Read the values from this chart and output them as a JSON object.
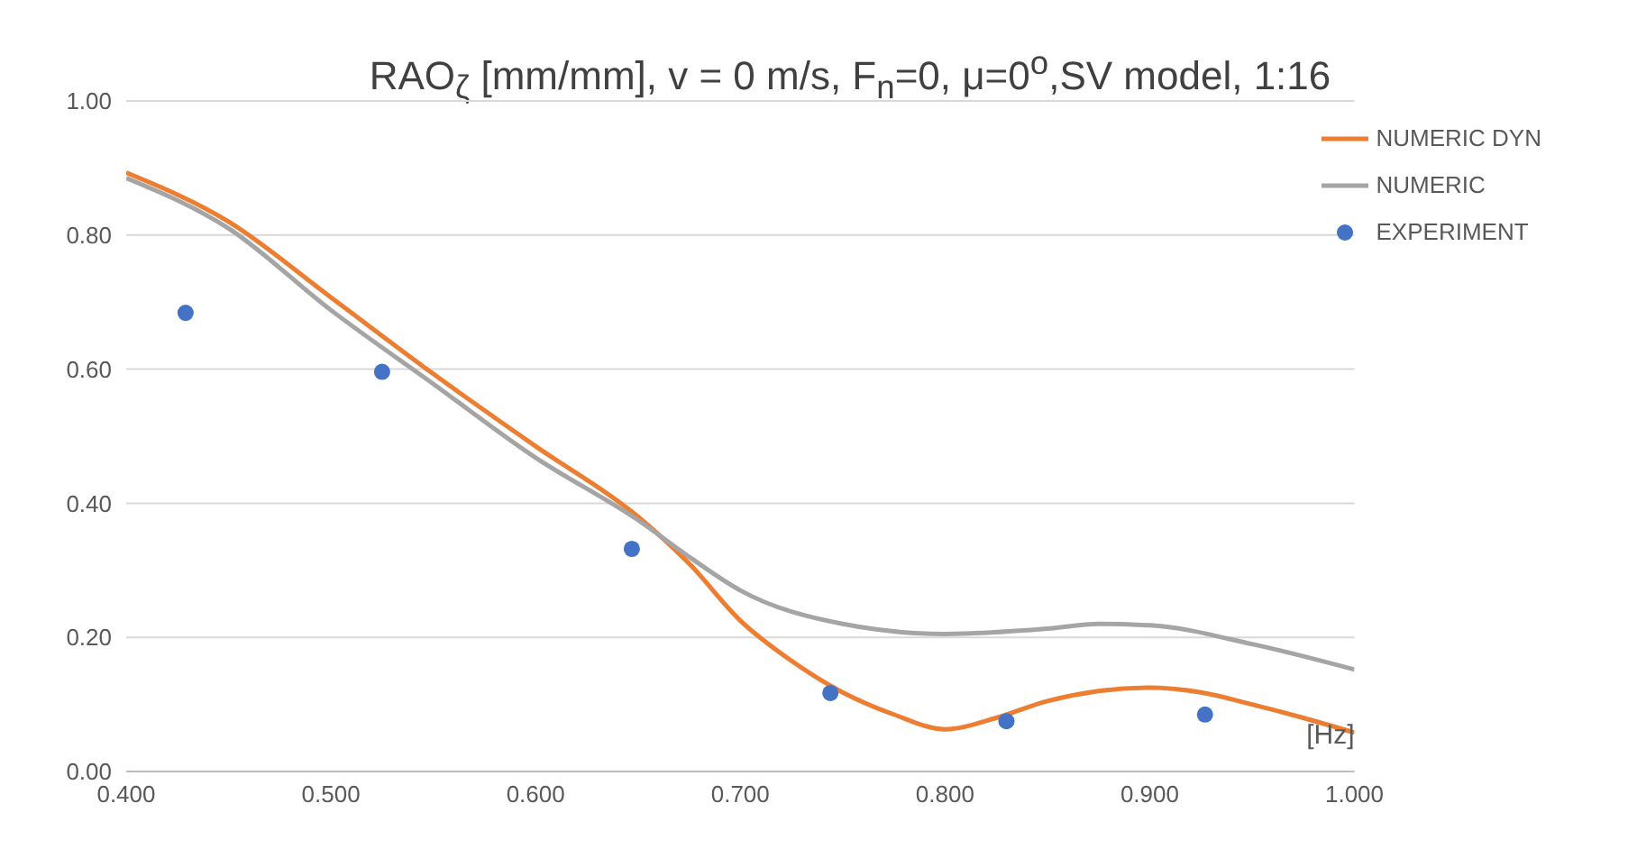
{
  "chart_data": {
    "type": "line",
    "title": "RAO$_{ζ}$ [mm/mm], v = 0 m/s, F$_{n}$=0,  μ=0$^{o}$,SV model, 1:16",
    "xlabel": "[Hz]",
    "series": [
      {
        "name": "NUMERIC DYN",
        "color": "#ed7d31",
        "marker": "none",
        "x": [
          0.4,
          0.45,
          0.5,
          0.55,
          0.6,
          0.65,
          0.675,
          0.7,
          0.725,
          0.75,
          0.775,
          0.8,
          0.825,
          0.85,
          0.875,
          0.9,
          0.925,
          0.95,
          0.975,
          1.0
        ],
        "values": [
          0.893,
          0.82,
          0.707,
          0.593,
          0.485,
          0.38,
          0.31,
          0.225,
          0.165,
          0.118,
          0.085,
          0.063,
          0.08,
          0.105,
          0.12,
          0.125,
          0.118,
          0.1,
          0.08,
          0.058
        ]
      },
      {
        "name": "NUMERIC",
        "color": "#a5a5a5",
        "marker": "none",
        "x": [
          0.4,
          0.45,
          0.5,
          0.55,
          0.6,
          0.65,
          0.675,
          0.7,
          0.75,
          0.8,
          0.85,
          0.875,
          0.9,
          0.95,
          1.0
        ],
        "values": [
          0.885,
          0.81,
          0.688,
          0.578,
          0.468,
          0.375,
          0.32,
          0.27,
          0.22,
          0.205,
          0.213,
          0.22,
          0.218,
          0.19,
          0.152
        ]
      },
      {
        "name": "EXPERIMENT",
        "type": "scatter",
        "color": "#4472c4",
        "marker": "circle",
        "x": [
          0.429,
          0.525,
          0.647,
          0.744,
          0.83,
          0.927
        ],
        "values": [
          0.684,
          0.596,
          0.332,
          0.117,
          0.075,
          0.085
        ]
      }
    ],
    "xlim": [
      0.4,
      1.0
    ],
    "xticks": [
      {
        "value": 0.4,
        "label": "0.400"
      },
      {
        "value": 0.5,
        "label": "0.500"
      },
      {
        "value": 0.6,
        "label": "0.600"
      },
      {
        "value": 0.7,
        "label": "0.700"
      },
      {
        "value": 0.8,
        "label": "0.800"
      },
      {
        "value": 0.9,
        "label": "0.900"
      },
      {
        "value": 1.0,
        "label": "1.000"
      }
    ],
    "ylim": [
      0,
      1
    ],
    "yticks": [
      {
        "value": 0,
        "label": "0.00"
      },
      {
        "value": 0.2,
        "label": "0.20"
      },
      {
        "value": 0.4,
        "label": "0.40"
      },
      {
        "value": 0.6,
        "label": "0.60"
      },
      {
        "value": 0.8,
        "label": "0.80"
      },
      {
        "value": 1,
        "label": "1.00"
      }
    ],
    "grid": "y",
    "legend": "top right",
    "line_style": "solid"
  }
}
